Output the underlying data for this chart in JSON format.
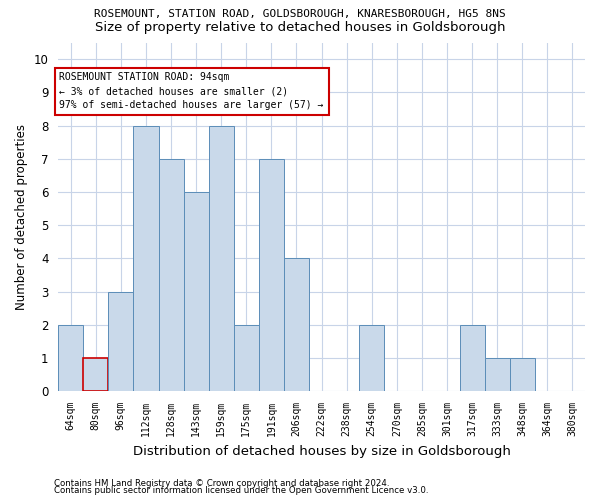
{
  "title_line1": "ROSEMOUNT, STATION ROAD, GOLDSBOROUGH, KNARESBOROUGH, HG5 8NS",
  "title_line2": "Size of property relative to detached houses in Goldsborough",
  "xlabel": "Distribution of detached houses by size in Goldsborough",
  "ylabel": "Number of detached properties",
  "categories": [
    "64sqm",
    "80sqm",
    "96sqm",
    "112sqm",
    "128sqm",
    "143sqm",
    "159sqm",
    "175sqm",
    "191sqm",
    "206sqm",
    "222sqm",
    "238sqm",
    "254sqm",
    "270sqm",
    "285sqm",
    "301sqm",
    "317sqm",
    "333sqm",
    "348sqm",
    "364sqm",
    "380sqm"
  ],
  "values": [
    2,
    1,
    3,
    8,
    7,
    6,
    8,
    2,
    7,
    4,
    0,
    0,
    2,
    0,
    0,
    0,
    2,
    1,
    1,
    0,
    0
  ],
  "bar_color": "#c9d9ea",
  "bar_edge_color": "#5b8db8",
  "highlight_bar_index": 1,
  "highlight_edge_color": "#cc0000",
  "annotation_box_text": "ROSEMOUNT STATION ROAD: 94sqm\n← 3% of detached houses are smaller (2)\n97% of semi-detached houses are larger (57) →",
  "ylim": [
    0,
    10.5
  ],
  "yticks": [
    0,
    1,
    2,
    3,
    4,
    5,
    6,
    7,
    8,
    9,
    10
  ],
  "footer_line1": "Contains HM Land Registry data © Crown copyright and database right 2024.",
  "footer_line2": "Contains public sector information licensed under the Open Government Licence v3.0.",
  "bg_color": "#ffffff",
  "grid_color": "#c8d4e8",
  "title1_fontsize": 8.0,
  "title2_fontsize": 9.5,
  "ylabel_fontsize": 8.5,
  "xlabel_fontsize": 9.5,
  "bar_width": 1.0
}
